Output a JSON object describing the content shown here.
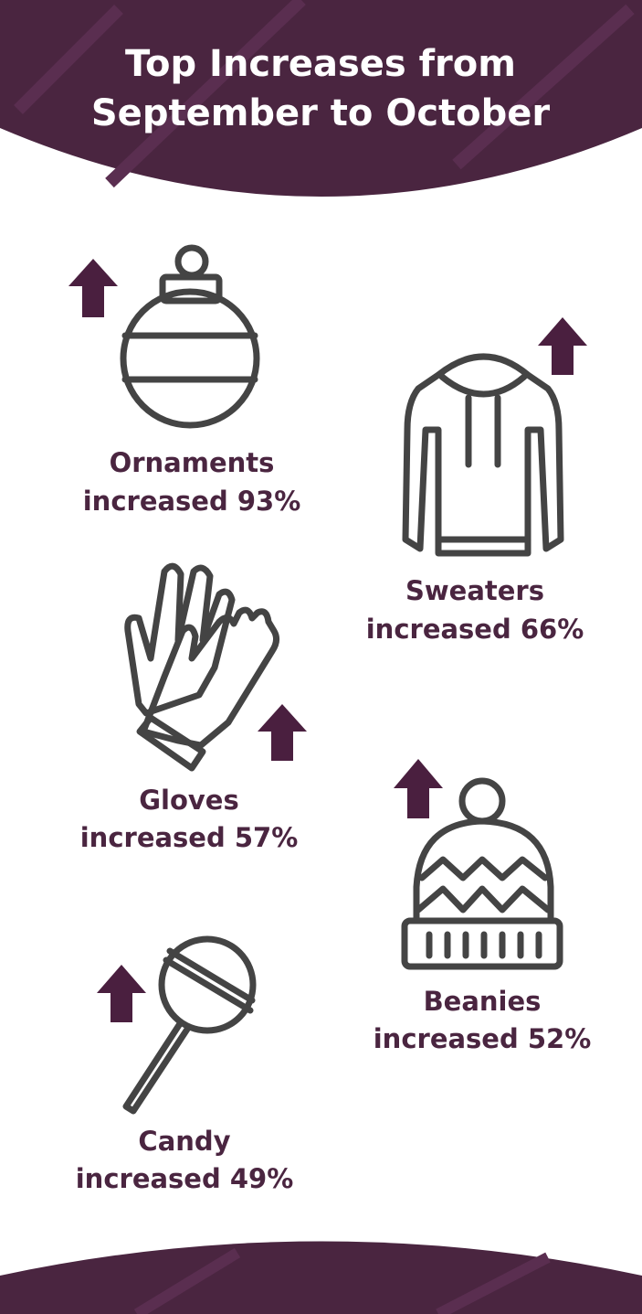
{
  "header": {
    "title_lines": [
      "Top Increases from",
      "September to October"
    ]
  },
  "items": [
    {
      "name": "Ornaments",
      "change": "increased 93%"
    },
    {
      "name": "Sweaters",
      "change": "increased 66%"
    },
    {
      "name": "Gloves",
      "change": "increased 57%"
    },
    {
      "name": "Beanies",
      "change": "increased 52%"
    },
    {
      "name": "Candy",
      "change": "increased 49%"
    }
  ]
}
